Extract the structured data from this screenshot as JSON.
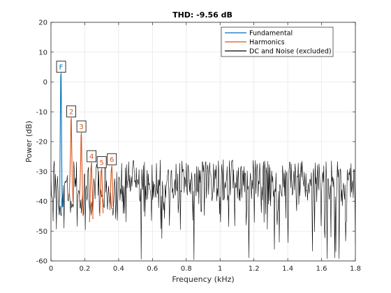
{
  "chart_data": {
    "type": "line",
    "title": "THD:  -9.56 dB",
    "xlabel": "Frequency (kHz)",
    "ylabel": "Power (dB)",
    "xlim": [
      0,
      1.8
    ],
    "ylim": [
      -60,
      20
    ],
    "xticks": [
      0,
      0.2,
      0.4,
      0.6,
      0.8,
      1,
      1.2,
      1.4,
      1.6,
      1.8
    ],
    "xtick_labels": [
      "0",
      "0.2",
      "0.4",
      "0.6",
      "0.8",
      "1",
      "1.2",
      "1.4",
      "1.6",
      "1.8"
    ],
    "yticks": [
      -60,
      -50,
      -40,
      -30,
      -20,
      -10,
      0,
      10,
      20
    ],
    "ytick_labels": [
      "-60",
      "-50",
      "-40",
      "-30",
      "-20",
      "-10",
      "0",
      "10",
      "20"
    ],
    "grid": true,
    "legend_position": "top-right",
    "series": [
      {
        "name": "Fundamental",
        "color": "#0072BD",
        "x": [
          0.048,
          0.052,
          0.055,
          0.058,
          0.06,
          0.062,
          0.065,
          0.068
        ],
        "y": [
          -44,
          -38,
          -15,
          2,
          3,
          -10,
          -35,
          -42
        ]
      },
      {
        "name": "Harmonics",
        "color": "#D95319",
        "x": [
          0.108,
          0.112,
          0.116,
          0.118,
          0.12,
          0.122,
          0.126,
          0.13,
          0.168,
          0.172,
          0.176,
          0.178,
          0.18,
          0.182,
          0.186,
          0.19,
          0.228,
          0.232,
          0.236,
          0.24,
          0.244,
          0.248,
          0.288,
          0.292,
          0.296,
          0.3,
          0.304,
          0.308,
          0.348,
          0.352,
          0.356,
          0.36,
          0.364,
          0.368
        ],
        "y": [
          -38,
          -32,
          -22,
          -13,
          -12,
          -20,
          -33,
          -40,
          -40,
          -34,
          -26,
          -18,
          -17,
          -25,
          -36,
          -45,
          -47,
          -38,
          -29,
          -27,
          -36,
          -46,
          -45,
          -37,
          -30,
          -29,
          -36,
          -44,
          -43,
          -36,
          -30,
          -28,
          -35,
          -42
        ]
      },
      {
        "name": "DC and Noise (excluded)",
        "color": "#000000",
        "noise_baseline_db": -33,
        "noise_floor_db": -60,
        "noise_ceiling_db": -23
      }
    ],
    "markers": [
      {
        "label": "F",
        "x": 0.06,
        "y": 3
      },
      {
        "label": "2",
        "x": 0.12,
        "y": -12
      },
      {
        "label": "3",
        "x": 0.18,
        "y": -17
      },
      {
        "label": "4",
        "x": 0.24,
        "y": -27
      },
      {
        "label": "5",
        "x": 0.3,
        "y": -29
      },
      {
        "label": "6",
        "x": 0.36,
        "y": -28
      }
    ]
  }
}
